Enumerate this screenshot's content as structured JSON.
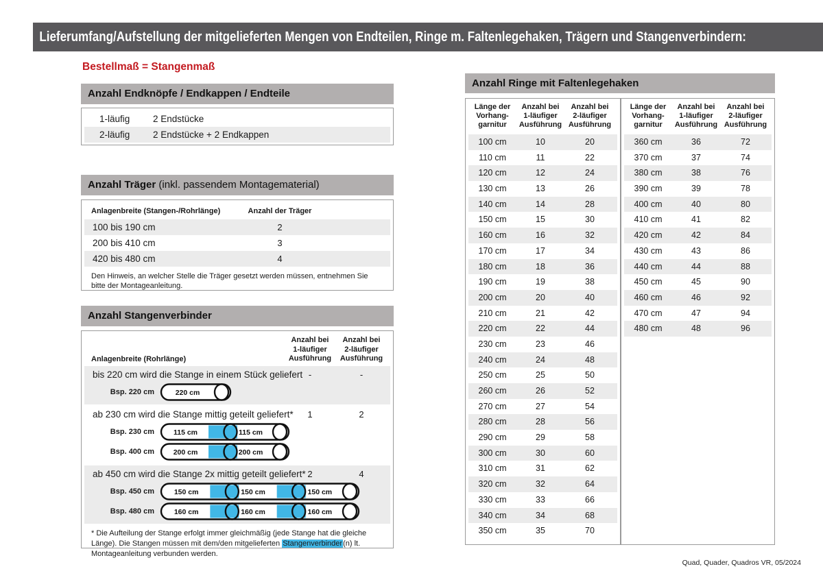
{
  "page": {
    "title": "Lieferumfang/Aufstellung der mitgelieferten Mengen von Endteilen, Ringe m. Faltenlegehaken, Trägern und Stangenverbindern:",
    "subtitle_red": "Bestellmaß = Stangenmaß",
    "footer": "Quad, Quader, Quadros VR, 05/2024"
  },
  "colors": {
    "title_bar_bg": "#59585b",
    "section_bar_bg": "#b2afaf",
    "row_alt_bg": "#ebebeb",
    "accent_red": "#c31a20",
    "connector_blue": "#41b7e6",
    "box_border": "#9a9a9a"
  },
  "endteile": {
    "header": "Anzahl Endknöpfe / Endkappen / Endteile",
    "rows": [
      {
        "label": "1-läufig",
        "value": "2 Endstücke"
      },
      {
        "label": "2-läufig",
        "value": "2 Endstücke + 2 Endkappen"
      }
    ]
  },
  "traeger": {
    "header_bold": "Anzahl Träger",
    "header_rest": " (inkl. passendem Montagematerial)",
    "col1": "Anlagenbreite (Stangen-/Rohrlänge)",
    "col2": "Anzahl der Träger",
    "rows": [
      {
        "range": "100 bis 190 cm",
        "count": "2"
      },
      {
        "range": "200 bis 410 cm",
        "count": "3"
      },
      {
        "range": "420 bis 480 cm",
        "count": "4"
      }
    ],
    "note": "Den Hinweis, an welcher Stelle die Träger gesetzt werden müssen, entnehmen Sie bitte der Montageanleitung."
  },
  "verbinder": {
    "header": "Anzahl Stangenverbinder",
    "col1": "Anlagenbreite (Rohrlänge)",
    "col2_lines": [
      "Anzahl bei",
      "1-läufiger",
      "Ausführung"
    ],
    "col3_lines": [
      "Anzahl bei",
      "2-läufiger",
      "Ausführung"
    ],
    "sections": [
      {
        "text": "bis 220 cm wird die Stange in einem Stück geliefert",
        "v1": "-",
        "v2": "-",
        "shaded": true,
        "rods": [
          {
            "label": "Bsp. 220 cm",
            "segments": [
              "220 cm"
            ]
          }
        ]
      },
      {
        "text": "ab 230 cm wird die Stange mittig geteilt geliefert*",
        "v1": "1",
        "v2": "2",
        "shaded": false,
        "rods": [
          {
            "label": "Bsp. 230 cm",
            "segments": [
              "115 cm",
              "115 cm"
            ]
          },
          {
            "label": "Bsp. 400 cm",
            "segments": [
              "200 cm",
              "200 cm"
            ]
          }
        ]
      },
      {
        "text": "ab 450 cm wird die Stange 2x mittig geteilt geliefert*",
        "v1": "2",
        "v2": "4",
        "shaded": true,
        "rods": [
          {
            "label": "Bsp. 450 cm",
            "segments": [
              "150 cm",
              "150 cm",
              "150 cm"
            ]
          },
          {
            "label": "Bsp. 480 cm",
            "segments": [
              "160 cm",
              "160 cm",
              "160 cm"
            ]
          }
        ]
      }
    ],
    "footnote_pre": "* Die Aufteilung der Stange erfolgt immer gleichmäßig (jede Stange hat die gleiche Länge). Die Stangen müssen mit dem/den mitgelieferten ",
    "footnote_highlight": "Stangenverbinder",
    "footnote_post": "(n) lt. Montageanleitung verbunden werden."
  },
  "ringe": {
    "header": "Anzahl Ringe mit Faltenlegehaken",
    "col_headers": [
      [
        "Länge der",
        "Vorhang-",
        "garnitur"
      ],
      [
        "Anzahl bei",
        "1-läufiger",
        "Ausführung"
      ],
      [
        "Anzahl bei",
        "2-läufiger",
        "Ausführung"
      ]
    ],
    "left_rows": [
      [
        "100 cm",
        "10",
        "20"
      ],
      [
        "110 cm",
        "11",
        "22"
      ],
      [
        "120 cm",
        "12",
        "24"
      ],
      [
        "130 cm",
        "13",
        "26"
      ],
      [
        "140 cm",
        "14",
        "28"
      ],
      [
        "150 cm",
        "15",
        "30"
      ],
      [
        "160 cm",
        "16",
        "32"
      ],
      [
        "170 cm",
        "17",
        "34"
      ],
      [
        "180 cm",
        "18",
        "36"
      ],
      [
        "190 cm",
        "19",
        "38"
      ],
      [
        "200 cm",
        "20",
        "40"
      ],
      [
        "210 cm",
        "21",
        "42"
      ],
      [
        "220 cm",
        "22",
        "44"
      ],
      [
        "230 cm",
        "23",
        "46"
      ],
      [
        "240 cm",
        "24",
        "48"
      ],
      [
        "250 cm",
        "25",
        "50"
      ],
      [
        "260 cm",
        "26",
        "52"
      ],
      [
        "270 cm",
        "27",
        "54"
      ],
      [
        "280 cm",
        "28",
        "56"
      ],
      [
        "290 cm",
        "29",
        "58"
      ],
      [
        "300 cm",
        "30",
        "60"
      ],
      [
        "310 cm",
        "31",
        "62"
      ],
      [
        "320 cm",
        "32",
        "64"
      ],
      [
        "330 cm",
        "33",
        "66"
      ],
      [
        "340 cm",
        "34",
        "68"
      ],
      [
        "350 cm",
        "35",
        "70"
      ]
    ],
    "right_rows": [
      [
        "360 cm",
        "36",
        "72"
      ],
      [
        "370 cm",
        "37",
        "74"
      ],
      [
        "380 cm",
        "38",
        "76"
      ],
      [
        "390 cm",
        "39",
        "78"
      ],
      [
        "400 cm",
        "40",
        "80"
      ],
      [
        "410 cm",
        "41",
        "82"
      ],
      [
        "420 cm",
        "42",
        "84"
      ],
      [
        "430 cm",
        "43",
        "86"
      ],
      [
        "440 cm",
        "44",
        "88"
      ],
      [
        "450 cm",
        "45",
        "90"
      ],
      [
        "460 cm",
        "46",
        "92"
      ],
      [
        "470 cm",
        "47",
        "94"
      ],
      [
        "480 cm",
        "48",
        "96"
      ]
    ]
  }
}
